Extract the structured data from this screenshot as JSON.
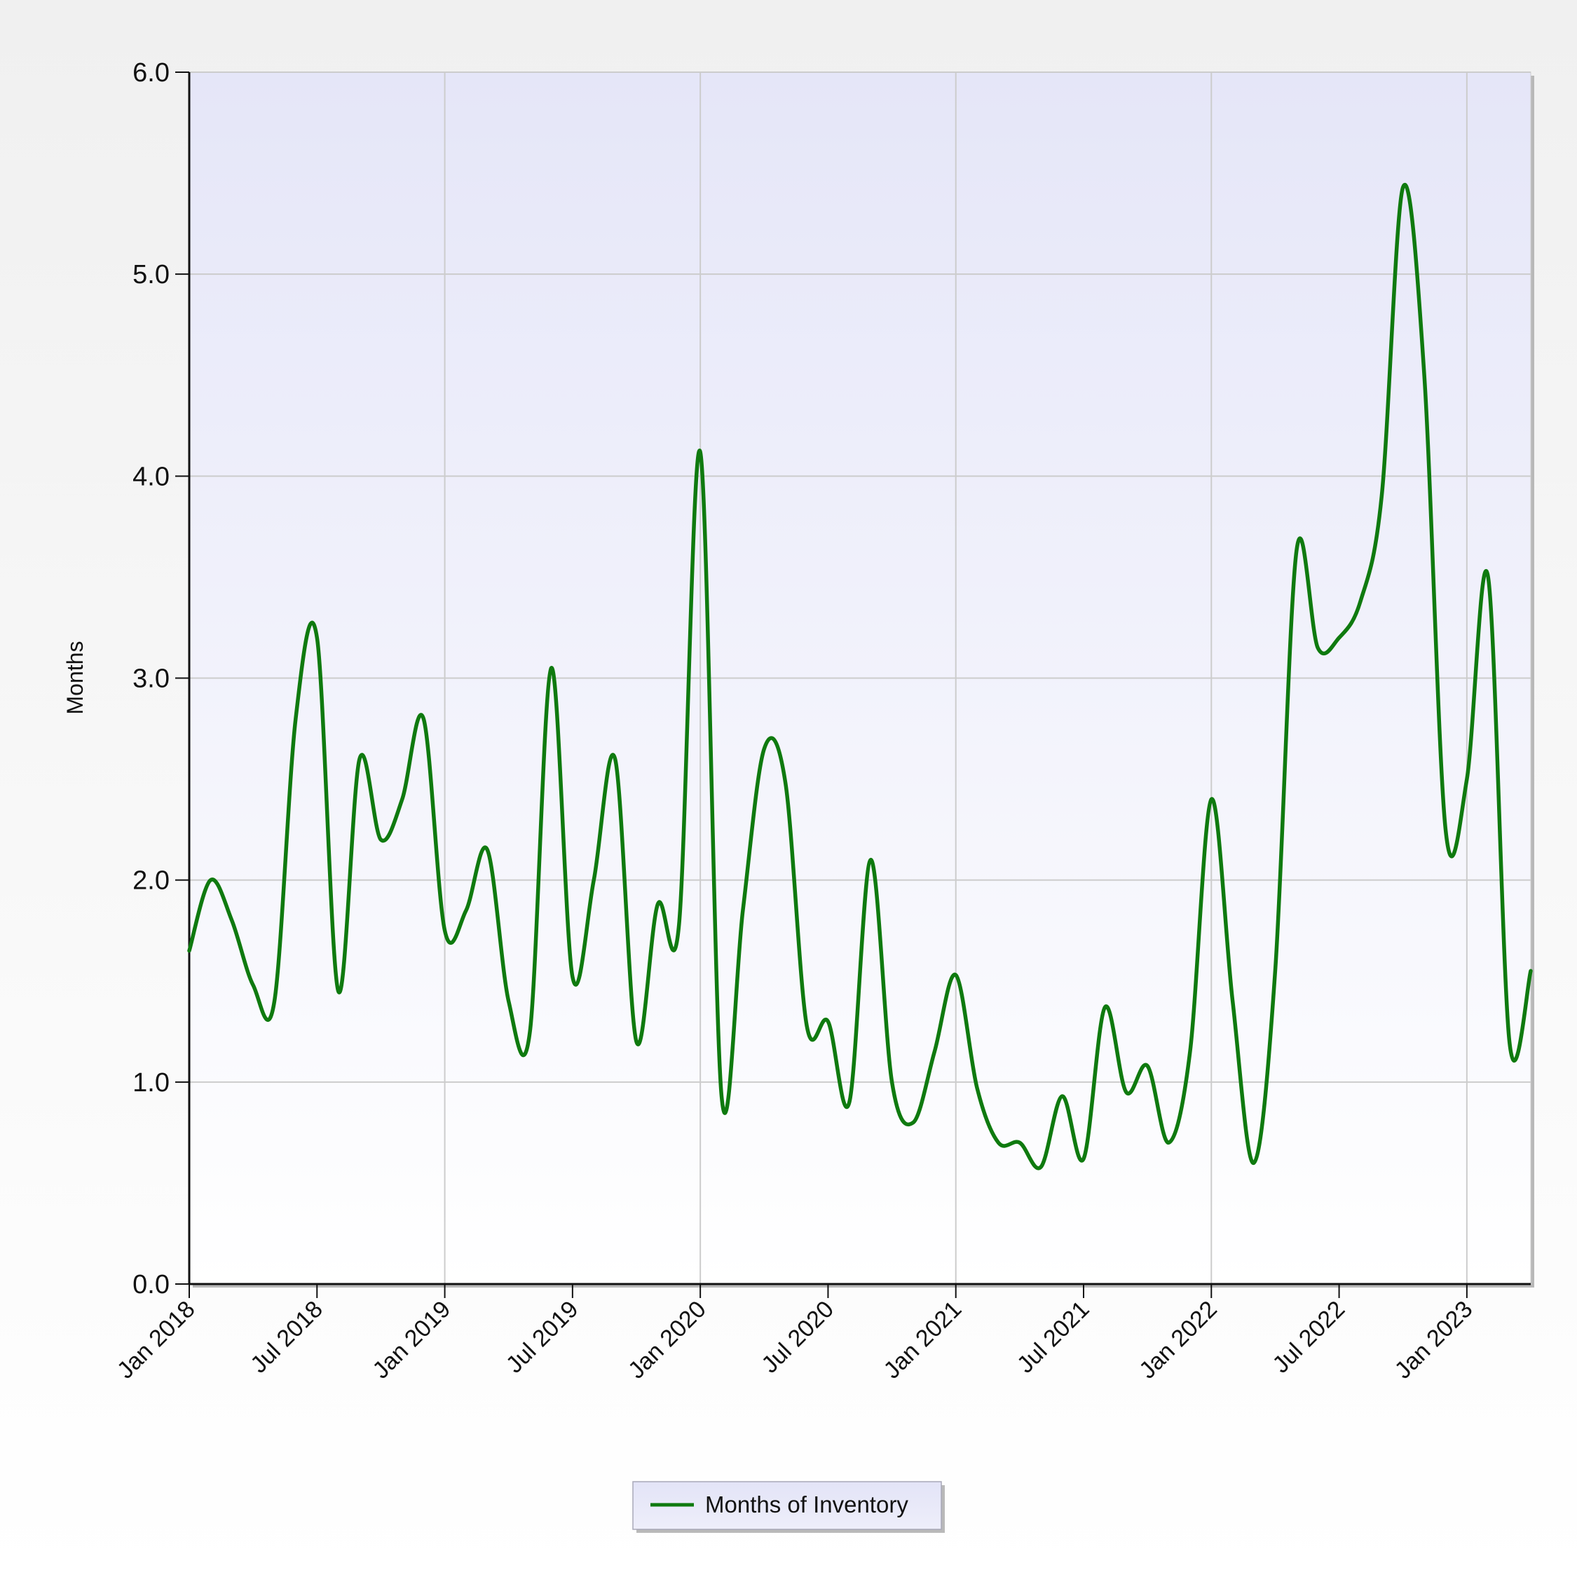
{
  "chart_data": {
    "type": "line",
    "title": "",
    "xlabel": "",
    "ylabel": "Months",
    "ylim": [
      0,
      6
    ],
    "xlim": [
      "2018-01",
      "2023-04"
    ],
    "grid": true,
    "legend_position": "bottom-center",
    "yticks": [
      "0.0",
      "1.0",
      "2.0",
      "3.0",
      "4.0",
      "5.0",
      "6.0"
    ],
    "xticks": [
      {
        "label": "Jan 2018",
        "date": "2018-01"
      },
      {
        "label": "Jul 2018",
        "date": "2018-07"
      },
      {
        "label": "Jan 2019",
        "date": "2019-01"
      },
      {
        "label": "Jul 2019",
        "date": "2019-07"
      },
      {
        "label": "Jan 2020",
        "date": "2020-01"
      },
      {
        "label": "Jul 2020",
        "date": "2020-07"
      },
      {
        "label": "Jan 2021",
        "date": "2021-01"
      },
      {
        "label": "Jul 2021",
        "date": "2021-07"
      },
      {
        "label": "Jan 2022",
        "date": "2022-01"
      },
      {
        "label": "Jul 2022",
        "date": "2022-07"
      },
      {
        "label": "Jan 2023",
        "date": "2023-01"
      }
    ],
    "x": [
      "2018-01",
      "2018-02",
      "2018-03",
      "2018-04",
      "2018-05",
      "2018-06",
      "2018-07",
      "2018-08",
      "2018-09",
      "2018-10",
      "2018-11",
      "2018-12",
      "2019-01",
      "2019-02",
      "2019-03",
      "2019-04",
      "2019-05",
      "2019-06",
      "2019-07",
      "2019-08",
      "2019-09",
      "2019-10",
      "2019-11",
      "2019-12",
      "2020-01",
      "2020-02",
      "2020-03",
      "2020-04",
      "2020-05",
      "2020-06",
      "2020-07",
      "2020-08",
      "2020-09",
      "2020-10",
      "2020-11",
      "2020-12",
      "2021-01",
      "2021-02",
      "2021-03",
      "2021-04",
      "2021-05",
      "2021-06",
      "2021-07",
      "2021-08",
      "2021-09",
      "2021-10",
      "2021-11",
      "2021-12",
      "2022-01",
      "2022-02",
      "2022-03",
      "2022-04",
      "2022-05",
      "2022-06",
      "2022-07",
      "2022-08",
      "2022-09",
      "2022-10",
      "2022-11",
      "2022-12",
      "2023-01",
      "2023-02",
      "2023-03",
      "2023-04"
    ],
    "series": [
      {
        "name": "Months of Inventory",
        "color": "#0f7a0f",
        "values": [
          1.65,
          2.0,
          1.8,
          1.48,
          1.4,
          2.8,
          3.2,
          1.45,
          2.6,
          2.2,
          2.4,
          2.8,
          1.75,
          1.85,
          2.15,
          1.4,
          1.25,
          3.05,
          1.52,
          2.0,
          2.6,
          1.2,
          1.88,
          1.78,
          4.12,
          0.93,
          1.85,
          2.65,
          2.48,
          1.28,
          1.3,
          0.9,
          2.1,
          1.0,
          0.8,
          1.15,
          1.53,
          0.97,
          0.7,
          0.7,
          0.58,
          0.93,
          0.62,
          1.37,
          0.95,
          1.08,
          0.7,
          1.15,
          2.4,
          1.4,
          0.6,
          1.55,
          3.63,
          3.15,
          3.2,
          3.38,
          3.9,
          5.43,
          4.5,
          2.25,
          2.5,
          3.5,
          1.2,
          1.55
        ]
      }
    ]
  }
}
